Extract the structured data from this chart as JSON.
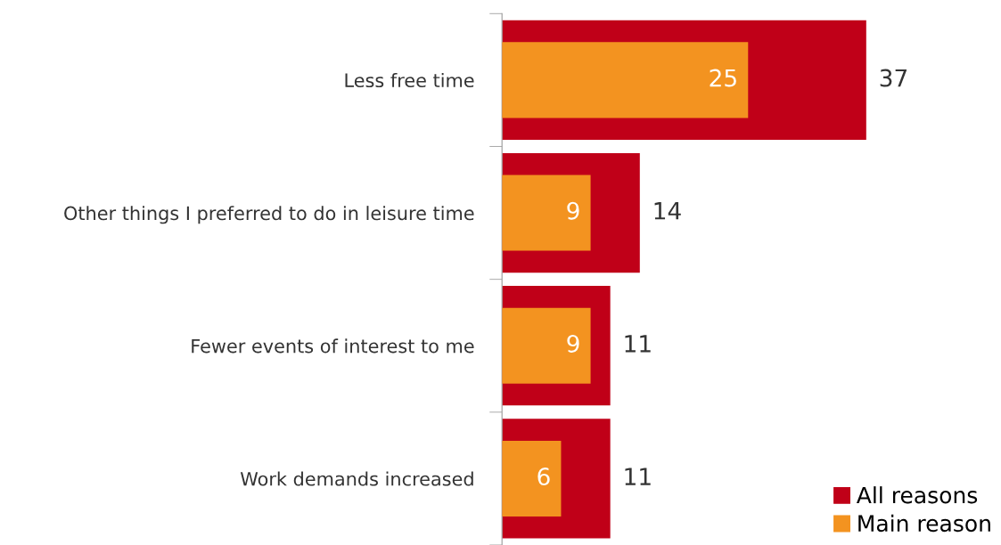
{
  "chart_data": {
    "type": "bar",
    "orientation": "horizontal",
    "categories": [
      "Less free time",
      "Other things I preferred to do in leisure time",
      "Fewer events of interest to me",
      "Work demands increased"
    ],
    "series": [
      {
        "name": "All reasons",
        "color": "#c00018",
        "values": [
          37,
          14,
          11,
          11
        ]
      },
      {
        "name": "Main reason",
        "color": "#f39320",
        "values": [
          25,
          9,
          9,
          6
        ]
      }
    ],
    "data_labels": true,
    "legend": "bottom right",
    "grid": false
  }
}
